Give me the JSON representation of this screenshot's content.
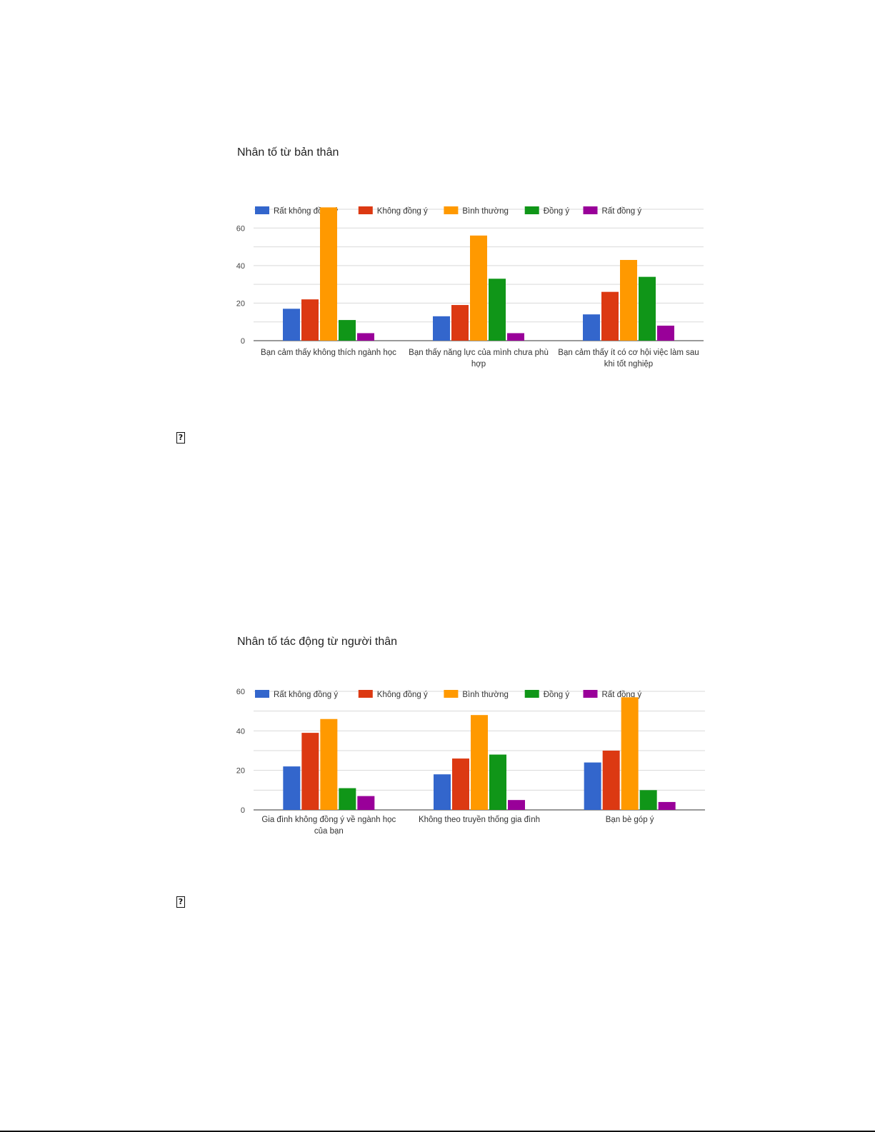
{
  "chart_data": [
    {
      "type": "bar",
      "title": "Nhân tố từ bản thân",
      "categories": [
        [
          "Bạn cảm thấy không thích ngành học"
        ],
        [
          "Bạn thấy năng lực của mình chưa phù",
          "hợp"
        ],
        [
          "Bạn cảm thấy ít có cơ hội việc làm sau",
          "khi tốt nghiệp"
        ]
      ],
      "series": [
        {
          "name": "Rất không đồng ý",
          "color": "#3366cc",
          "values": [
            17,
            13,
            14
          ]
        },
        {
          "name": "Không đồng ý",
          "color": "#dc3912",
          "values": [
            22,
            19,
            26
          ]
        },
        {
          "name": "Bình thường",
          "color": "#ff9900",
          "values": [
            71,
            56,
            43
          ]
        },
        {
          "name": "Đồng ý",
          "color": "#109618",
          "values": [
            11,
            33,
            34
          ]
        },
        {
          "name": "Rất đồng ý",
          "color": "#990099",
          "values": [
            4,
            4,
            8
          ]
        }
      ],
      "yticks": [
        0,
        20,
        40,
        60
      ],
      "ylim": [
        0,
        70
      ],
      "legend_position": "top",
      "grid": true
    },
    {
      "type": "bar",
      "title": "Nhân tố tác động từ người thân",
      "categories": [
        [
          "Gia đình không đồng ý về ngành học",
          "của bạn"
        ],
        [
          "Không theo truyền thống gia đình"
        ],
        [
          "Bạn bè góp ý"
        ]
      ],
      "series": [
        {
          "name": "Rất không đồng ý",
          "color": "#3366cc",
          "values": [
            22,
            18,
            24
          ]
        },
        {
          "name": "Không đồng ý",
          "color": "#dc3912",
          "values": [
            39,
            26,
            30
          ]
        },
        {
          "name": "Bình thường",
          "color": "#ff9900",
          "values": [
            46,
            48,
            57
          ]
        },
        {
          "name": "Đồng ý",
          "color": "#109618",
          "values": [
            11,
            28,
            10
          ]
        },
        {
          "name": "Rất đồng ý",
          "color": "#990099",
          "values": [
            7,
            5,
            4
          ]
        }
      ],
      "yticks": [
        0,
        20,
        40,
        60
      ],
      "ylim": [
        0,
        60
      ],
      "legend_position": "top",
      "grid": true
    }
  ],
  "icons": {
    "missing_image_glyph": "?"
  }
}
